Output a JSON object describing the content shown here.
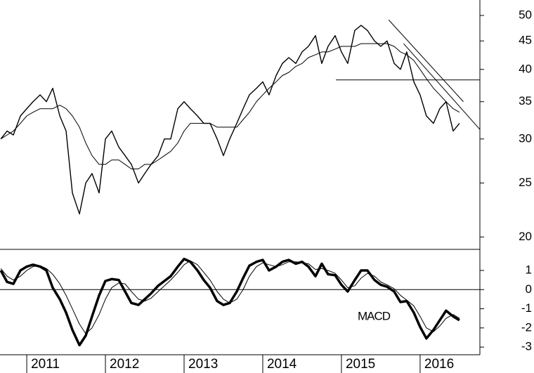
{
  "chart_data": [
    {
      "type": "line",
      "log_scale": true,
      "x": [
        2010.67,
        2010.75,
        2010.83,
        2010.92,
        2011.0,
        2011.08,
        2011.17,
        2011.25,
        2011.33,
        2011.42,
        2011.5,
        2011.58,
        2011.67,
        2011.75,
        2011.83,
        2011.92,
        2012.0,
        2012.08,
        2012.17,
        2012.25,
        2012.33,
        2012.42,
        2012.5,
        2012.58,
        2012.67,
        2012.75,
        2012.83,
        2012.92,
        2013.0,
        2013.08,
        2013.17,
        2013.25,
        2013.33,
        2013.42,
        2013.5,
        2013.58,
        2013.67,
        2013.75,
        2013.83,
        2013.92,
        2014.0,
        2014.08,
        2014.17,
        2014.25,
        2014.33,
        2014.42,
        2014.5,
        2014.58,
        2014.67,
        2014.75,
        2014.83,
        2014.92,
        2015.0,
        2015.08,
        2015.17,
        2015.25,
        2015.33,
        2015.42,
        2015.5,
        2015.58,
        2015.67,
        2015.75,
        2015.83,
        2015.92,
        2016.0,
        2016.08,
        2016.17,
        2016.25,
        2016.33,
        2016.42,
        2016.5
      ],
      "series": [
        {
          "color": "#000000",
          "line_width": 1.4,
          "values": [
            30,
            31,
            30.5,
            33,
            34,
            35,
            36,
            35,
            37,
            33,
            31,
            24,
            22,
            25,
            26,
            24,
            30,
            31,
            29,
            28,
            27,
            25,
            26,
            27,
            28,
            30,
            30,
            34,
            35,
            34,
            33,
            32,
            32,
            30,
            28,
            30,
            32,
            34,
            36,
            37,
            38,
            36,
            39,
            41,
            42,
            41,
            43,
            44,
            46,
            41,
            44,
            46,
            43,
            41,
            47,
            48,
            47,
            45,
            44,
            45,
            41,
            40,
            43,
            38,
            36,
            33,
            32,
            34,
            35,
            31,
            32
          ]
        },
        {
          "color": "#000000",
          "line_width": 1,
          "values": [
            30,
            30.5,
            31,
            32,
            33,
            33.5,
            34,
            34,
            34,
            34.5,
            34,
            33,
            31.5,
            29.5,
            28,
            27,
            27,
            27.5,
            27.5,
            27,
            26.5,
            26.5,
            27,
            27,
            27.5,
            28,
            28.5,
            29.5,
            31,
            32,
            32,
            32,
            32,
            31.5,
            31.5,
            31.5,
            31.5,
            32.5,
            33.5,
            35,
            36,
            37,
            38,
            39,
            39.5,
            40.5,
            41,
            42,
            42.5,
            43,
            43,
            43.5,
            44,
            44,
            44,
            44.5,
            44.5,
            44.5,
            44.5,
            44.5,
            44,
            43,
            42.5,
            41.5,
            40,
            38.5,
            37,
            36,
            35,
            34,
            33.5
          ]
        }
      ],
      "trend_lines": [
        {
          "x": [
            2015.6,
            2016.55
          ],
          "y": [
            49.1,
            35.0
          ]
        },
        {
          "x": [
            2015.79,
            2016.76
          ],
          "y": [
            44.5,
            31.2
          ]
        },
        {
          "x": [
            2014.93,
            2016.76
          ],
          "y": [
            38.3,
            38.3
          ]
        }
      ],
      "xlim": [
        2010.66,
        2016.76
      ],
      "ylim": [
        19,
        53.3
      ],
      "yticks": [
        20,
        25,
        30,
        35,
        40,
        45,
        50
      ]
    },
    {
      "type": "line",
      "annotation": "MACD",
      "zero_line": true,
      "x": [
        2010.67,
        2010.75,
        2010.83,
        2010.92,
        2011.0,
        2011.08,
        2011.17,
        2011.25,
        2011.33,
        2011.42,
        2011.5,
        2011.58,
        2011.67,
        2011.75,
        2011.83,
        2011.92,
        2012.0,
        2012.08,
        2012.17,
        2012.25,
        2012.33,
        2012.42,
        2012.5,
        2012.58,
        2012.67,
        2012.75,
        2012.83,
        2012.92,
        2013.0,
        2013.08,
        2013.17,
        2013.25,
        2013.33,
        2013.42,
        2013.5,
        2013.58,
        2013.67,
        2013.75,
        2013.83,
        2013.92,
        2014.0,
        2014.08,
        2014.17,
        2014.25,
        2014.33,
        2014.42,
        2014.5,
        2014.58,
        2014.67,
        2014.75,
        2014.83,
        2014.92,
        2015.0,
        2015.08,
        2015.17,
        2015.25,
        2015.33,
        2015.42,
        2015.5,
        2015.58,
        2015.67,
        2015.75,
        2015.83,
        2015.92,
        2016.0,
        2016.08,
        2016.17,
        2016.25,
        2016.33,
        2016.42,
        2016.5
      ],
      "series": [
        {
          "color": "#000000",
          "line_width": 3.5,
          "values": [
            1.0,
            0.4,
            0.3,
            1.0,
            1.2,
            1.3,
            1.2,
            1.0,
            0.1,
            -0.5,
            -1.2,
            -2.1,
            -2.9,
            -2.4,
            -1.4,
            -0.3,
            0.45,
            0.55,
            0.5,
            -0.1,
            -0.7,
            -0.8,
            -0.5,
            -0.2,
            0.2,
            0.45,
            0.7,
            1.2,
            1.6,
            1.45,
            1.0,
            0.5,
            0.1,
            -0.6,
            -0.8,
            -0.7,
            -0.1,
            0.6,
            1.25,
            1.45,
            1.55,
            1.0,
            1.2,
            1.45,
            1.55,
            1.35,
            1.45,
            1.2,
            0.7,
            1.35,
            0.8,
            0.75,
            0.25,
            -0.1,
            0.5,
            1.0,
            1.0,
            0.5,
            0.25,
            0.15,
            -0.1,
            -0.65,
            -0.6,
            -1.2,
            -1.95,
            -2.55,
            -2.1,
            -1.6,
            -1.1,
            -1.4,
            -1.6
          ]
        },
        {
          "color": "#000000",
          "line_width": 1,
          "values": [
            1.1,
            0.7,
            0.5,
            0.7,
            1.0,
            1.2,
            1.25,
            1.1,
            0.8,
            0.3,
            -0.3,
            -1.0,
            -1.8,
            -2.3,
            -2.0,
            -1.3,
            -0.5,
            0.1,
            0.35,
            0.3,
            -0.1,
            -0.5,
            -0.6,
            -0.45,
            -0.1,
            0.2,
            0.5,
            0.9,
            1.3,
            1.5,
            1.3,
            0.9,
            0.5,
            -0.1,
            -0.5,
            -0.7,
            -0.5,
            0.0,
            0.7,
            1.2,
            1.4,
            1.3,
            1.2,
            1.3,
            1.45,
            1.45,
            1.4,
            1.35,
            1.05,
            1.1,
            1.0,
            0.85,
            0.5,
            0.1,
            0.2,
            0.6,
            0.85,
            0.7,
            0.4,
            0.25,
            0.05,
            -0.3,
            -0.55,
            -0.85,
            -1.4,
            -2.0,
            -2.2,
            -1.9,
            -1.5,
            -1.3,
            -1.5
          ]
        }
      ],
      "xlim": [
        2010.66,
        2016.76
      ],
      "ylim": [
        -3.4,
        2.1
      ],
      "yticks": [
        -3,
        -2,
        -1,
        0,
        1
      ],
      "xticks": [
        2011,
        2012,
        2013,
        2014,
        2015,
        2016
      ]
    }
  ]
}
